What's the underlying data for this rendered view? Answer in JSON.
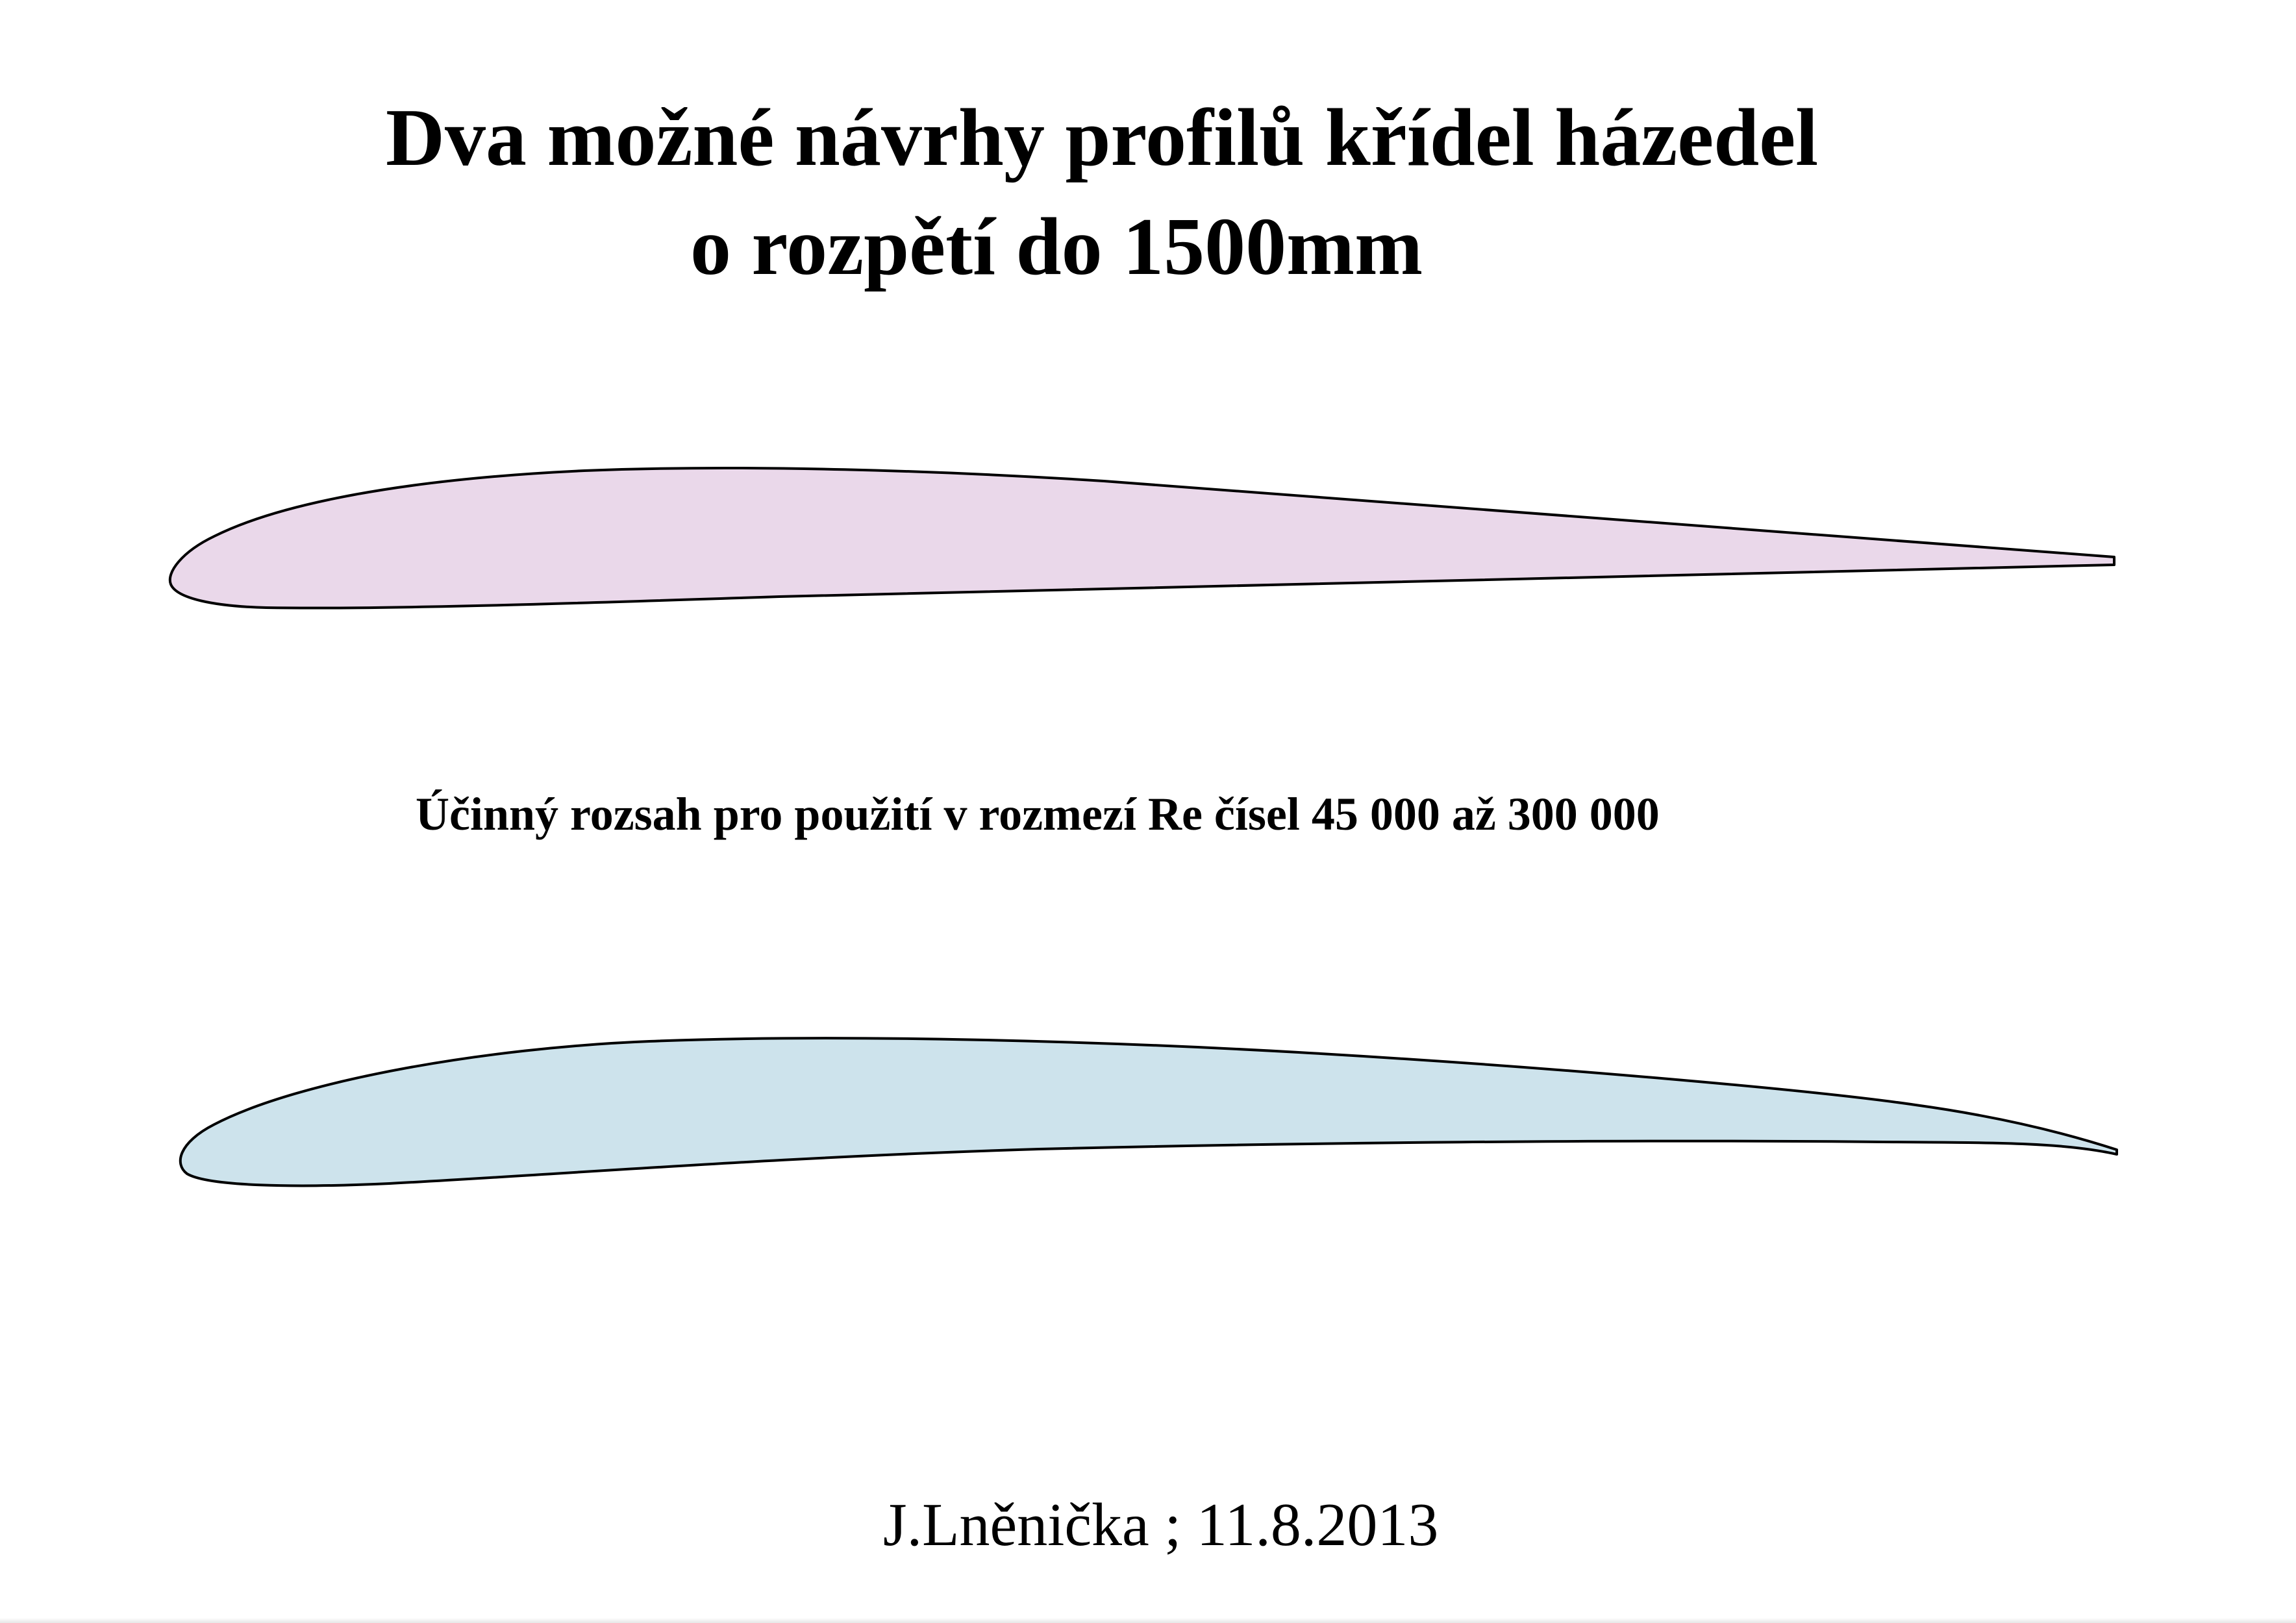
{
  "title": {
    "line1": "Dva možné návrhy profilů křídel házedel",
    "line2": "o rozpětí do 1500mm"
  },
  "subtitle": "Účinný rozsah pro použití v rozmezí Re čísel 45 000 až 300 000",
  "author_date": "J.Lněnička ; 11.8.2013",
  "profiles": [
    {
      "name": "profile-1",
      "fill": "#ead8ea",
      "stroke": "#000000"
    },
    {
      "name": "profile-2",
      "fill": "#cde3ec",
      "stroke": "#000000"
    }
  ]
}
